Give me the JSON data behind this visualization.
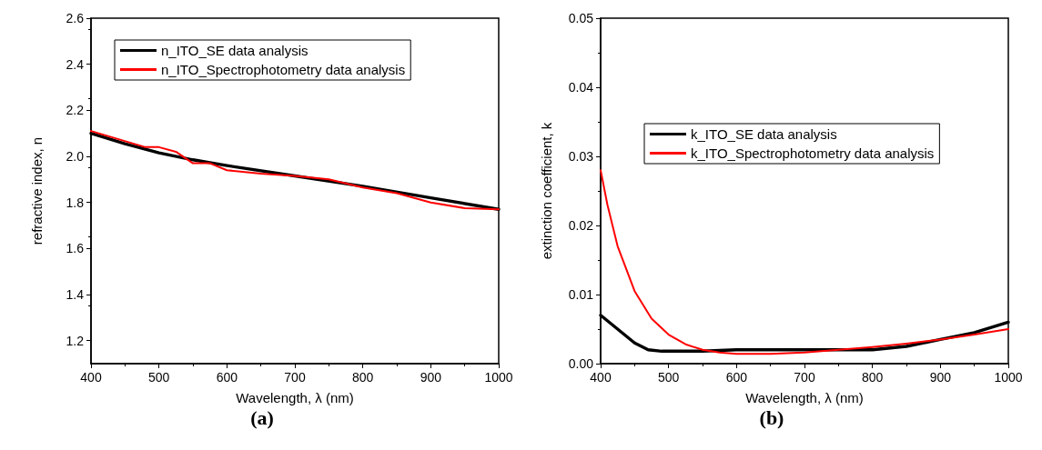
{
  "chart_data": [
    {
      "type": "line",
      "xlabel": "Wavelength, λ (nm)",
      "ylabel": "refractive index, n",
      "annotations": [
        "(a)"
      ],
      "legend": "top left",
      "grid": false,
      "marker": "none",
      "line_style": "solid",
      "xlim": [
        400,
        1000
      ],
      "xticks": [
        400,
        500,
        600,
        700,
        800,
        900,
        1000
      ],
      "ylim": [
        1.1,
        2.6
      ],
      "yticks": [
        1.2,
        1.4,
        1.6,
        1.8,
        {
          "value": 2,
          "label": "2.0"
        },
        2.2,
        2.4,
        2.6
      ],
      "series": [
        {
          "name": "n_ITO_SE data analysis",
          "color": "#000000",
          "x": [
            400,
            450,
            500,
            550,
            600,
            700,
            800,
            900,
            1000
          ],
          "values": [
            2.1,
            2.055,
            2.015,
            1.985,
            1.96,
            1.915,
            1.87,
            1.82,
            1.77
          ]
        },
        {
          "name": "n_ITO_Spectrophotometry data analysis",
          "color": "#ff0000",
          "x": [
            400,
            480,
            500,
            525,
            550,
            575,
            600,
            650,
            700,
            750,
            800,
            850,
            900,
            950,
            1000
          ],
          "values": [
            2.11,
            2.04,
            2.04,
            2.02,
            1.97,
            1.97,
            1.94,
            1.925,
            1.915,
            1.9,
            1.865,
            1.84,
            1.8,
            1.775,
            1.77
          ]
        }
      ]
    },
    {
      "type": "line",
      "xlabel": "Wavelength, λ (nm)",
      "ylabel": "extinction coefficient, k",
      "annotations": [
        "(b)"
      ],
      "legend": "left",
      "grid": false,
      "marker": "none",
      "line_style": "solid",
      "xlim": [
        400,
        1000
      ],
      "xticks": [
        400,
        500,
        600,
        700,
        800,
        900,
        1000
      ],
      "ylim": [
        0,
        0.05
      ],
      "yticks": [
        {
          "value": 0,
          "label": "0.00"
        },
        0.01,
        0.02,
        0.03,
        0.04,
        0.05
      ],
      "series": [
        {
          "name": "k_ITO_SE data analysis",
          "color": "#000000",
          "x": [
            400,
            450,
            470,
            490,
            550,
            600,
            700,
            800,
            850,
            900,
            950,
            1000
          ],
          "values": [
            0.007,
            0.003,
            0.002,
            0.0018,
            0.0018,
            0.002,
            0.002,
            0.002,
            0.0025,
            0.0035,
            0.0045,
            0.006
          ]
        },
        {
          "name": "k_ITO_Spectrophotometry data analysis",
          "color": "#ff0000",
          "x": [
            400,
            410,
            425,
            450,
            475,
            500,
            525,
            550,
            575,
            600,
            625,
            650,
            700,
            750,
            800,
            850,
            900,
            950,
            1000
          ],
          "values": [
            0.028,
            0.023,
            0.017,
            0.0105,
            0.0065,
            0.0042,
            0.0028,
            0.002,
            0.0016,
            0.0014,
            0.0014,
            0.0014,
            0.0016,
            0.002,
            0.0024,
            0.0029,
            0.0035,
            0.0042,
            0.005
          ]
        }
      ]
    }
  ]
}
